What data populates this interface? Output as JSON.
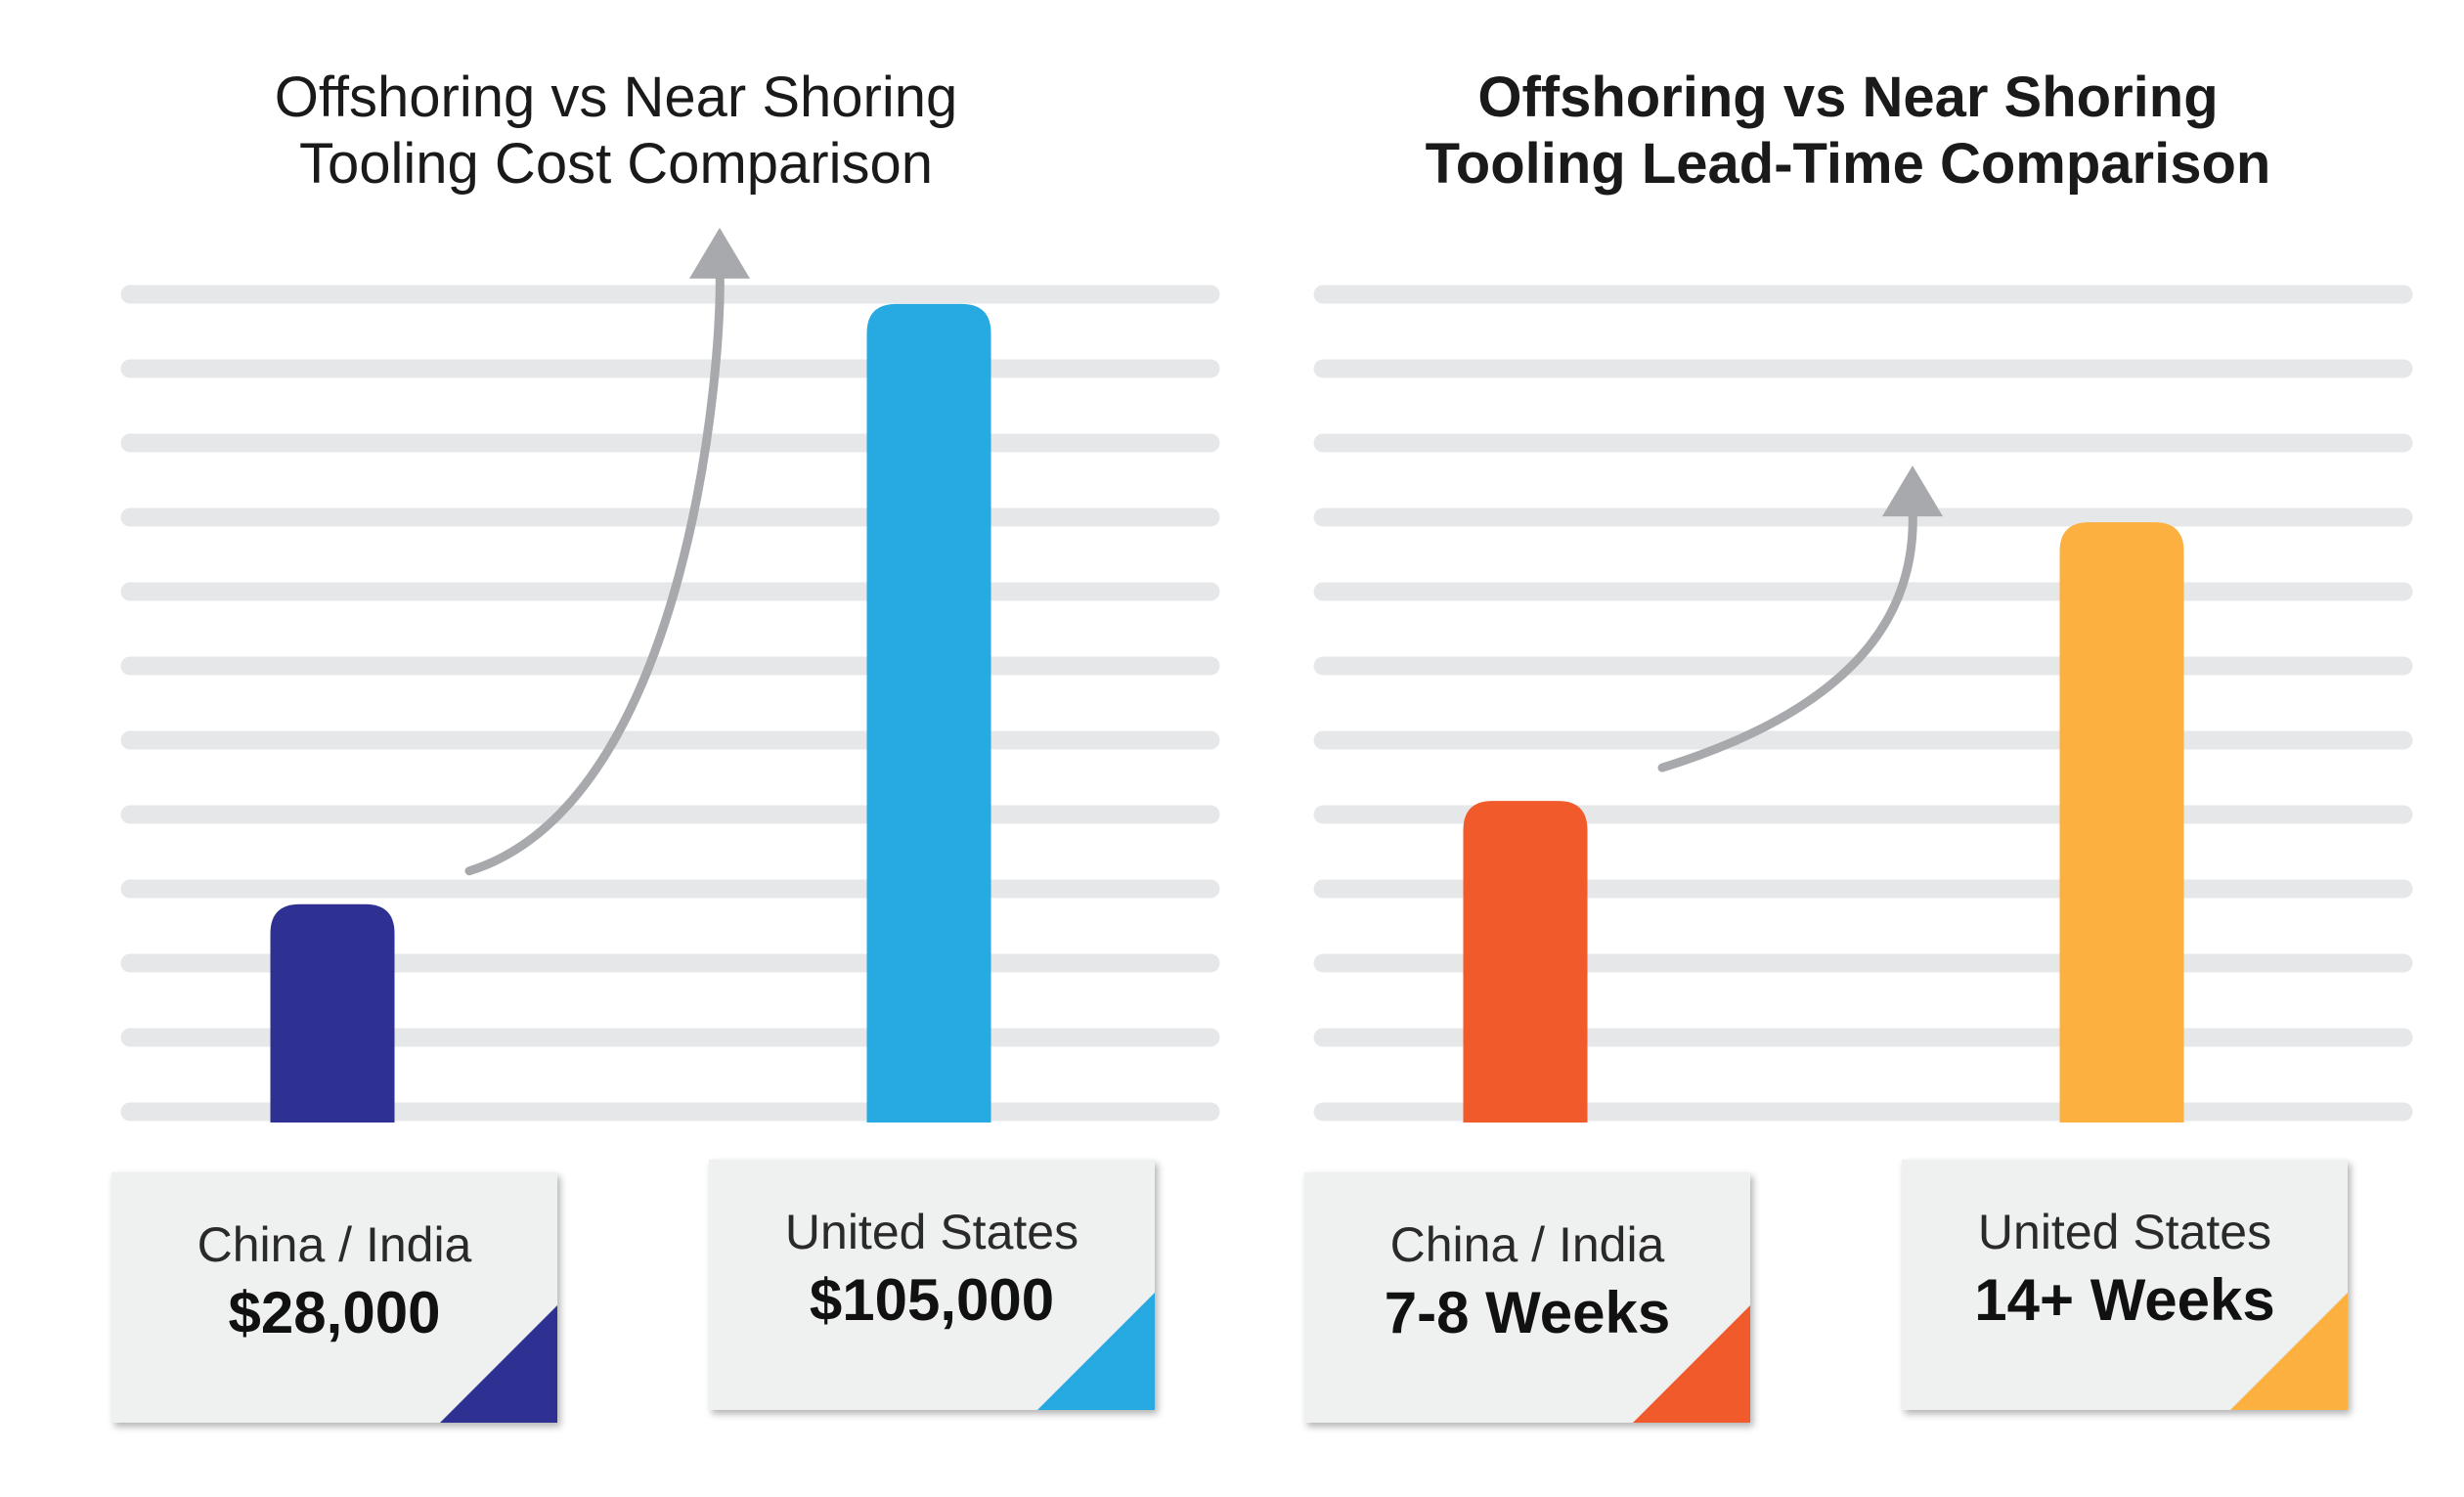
{
  "chart_data": [
    {
      "type": "bar",
      "title": "Offshoring vs Near Shoring\nTooling Cost Comparison",
      "title_lines": [
        "Offshoring vs Near Shoring",
        "Tooling Cost Comparison"
      ],
      "categories": [
        "China / India",
        "United States"
      ],
      "values": [
        28000,
        105000
      ],
      "value_labels": [
        "$28,000",
        "$105,000"
      ],
      "colors": [
        "#2e3192",
        "#27aae1"
      ],
      "ylim": [
        0,
        110000
      ],
      "grid": true,
      "trend_arrow": true
    },
    {
      "type": "bar",
      "title": "Offshoring vs Near Shoring\nTooling Lead-Time Comparison",
      "title_lines": [
        "Offshoring vs Near Shoring",
        "Tooling Lead-Time Comparison"
      ],
      "categories": [
        "China / India",
        "United States"
      ],
      "values": [
        7.5,
        14
      ],
      "value_labels": [
        "7-8 Weeks",
        "14+ Weeks"
      ],
      "colors": [
        "#f15a2b",
        "#fbb040"
      ],
      "ylim": [
        0,
        20
      ],
      "grid": true,
      "trend_arrow": true
    }
  ],
  "style": {
    "grid_color": "#e6e7e8",
    "arrow_color": "#a7a9ac",
    "card_color": "#eff0f0"
  }
}
